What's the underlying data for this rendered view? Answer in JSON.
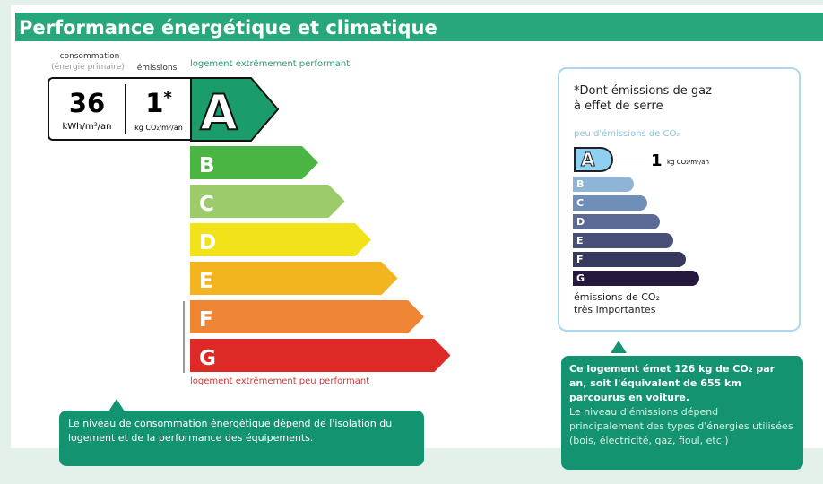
{
  "title": "Performance énergétique et climatique",
  "label_consumption": "consommation",
  "label_primary": "(énergie primaire)",
  "label_emissions": "émissions",
  "label_top": "logement extrêmement performant",
  "label_bottom": "logement extrêmement peu performant",
  "consumption_value": "36",
  "consumption_unit": "kWh/m²/an",
  "emissions_value": "1",
  "emissions_star": "*",
  "emissions_unit": "kg CO₂/m²/an",
  "energy_class": "A",
  "classes": [
    {
      "letter": "A",
      "color": "#1a9c6b"
    },
    {
      "letter": "B",
      "color": "#4bb543"
    },
    {
      "letter": "C",
      "color": "#9ccb6b"
    },
    {
      "letter": "D",
      "color": "#f1e21a"
    },
    {
      "letter": "E",
      "color": "#f2b41f"
    },
    {
      "letter": "F",
      "color": "#ed8534"
    },
    {
      "letter": "G",
      "color": "#dd2a26"
    }
  ],
  "ges": {
    "title_line1": "*Dont émissions de gaz",
    "title_line2": "à effet de serre",
    "top_label": "peu d'émissions de CO₂",
    "class": "A",
    "value": "1",
    "unit": "kg CO₂/m²/an",
    "bottom_line1": "émissions de CO₂",
    "bottom_line2": "très importantes",
    "classes": [
      {
        "letter": "A",
        "color": "#8fcff0"
      },
      {
        "letter": "B",
        "color": "#8fb4d6"
      },
      {
        "letter": "C",
        "color": "#6f8fb8"
      },
      {
        "letter": "D",
        "color": "#5b6b96"
      },
      {
        "letter": "E",
        "color": "#4a4f78"
      },
      {
        "letter": "F",
        "color": "#37385e"
      },
      {
        "letter": "G",
        "color": "#251a3d"
      }
    ]
  },
  "left_note": "Le niveau de consommation énergétique dépend de l'isolation du logement et de la performance des équipements.",
  "right_note_bold": "Ce logement émet 126 kg de CO₂ par an, soit l'équivalent de 655 km parcourus en voiture.",
  "right_note": "Le niveau d'émissions dépend principalement des types d'énergies utilisées (bois, électricité, gaz, fioul, etc.)"
}
